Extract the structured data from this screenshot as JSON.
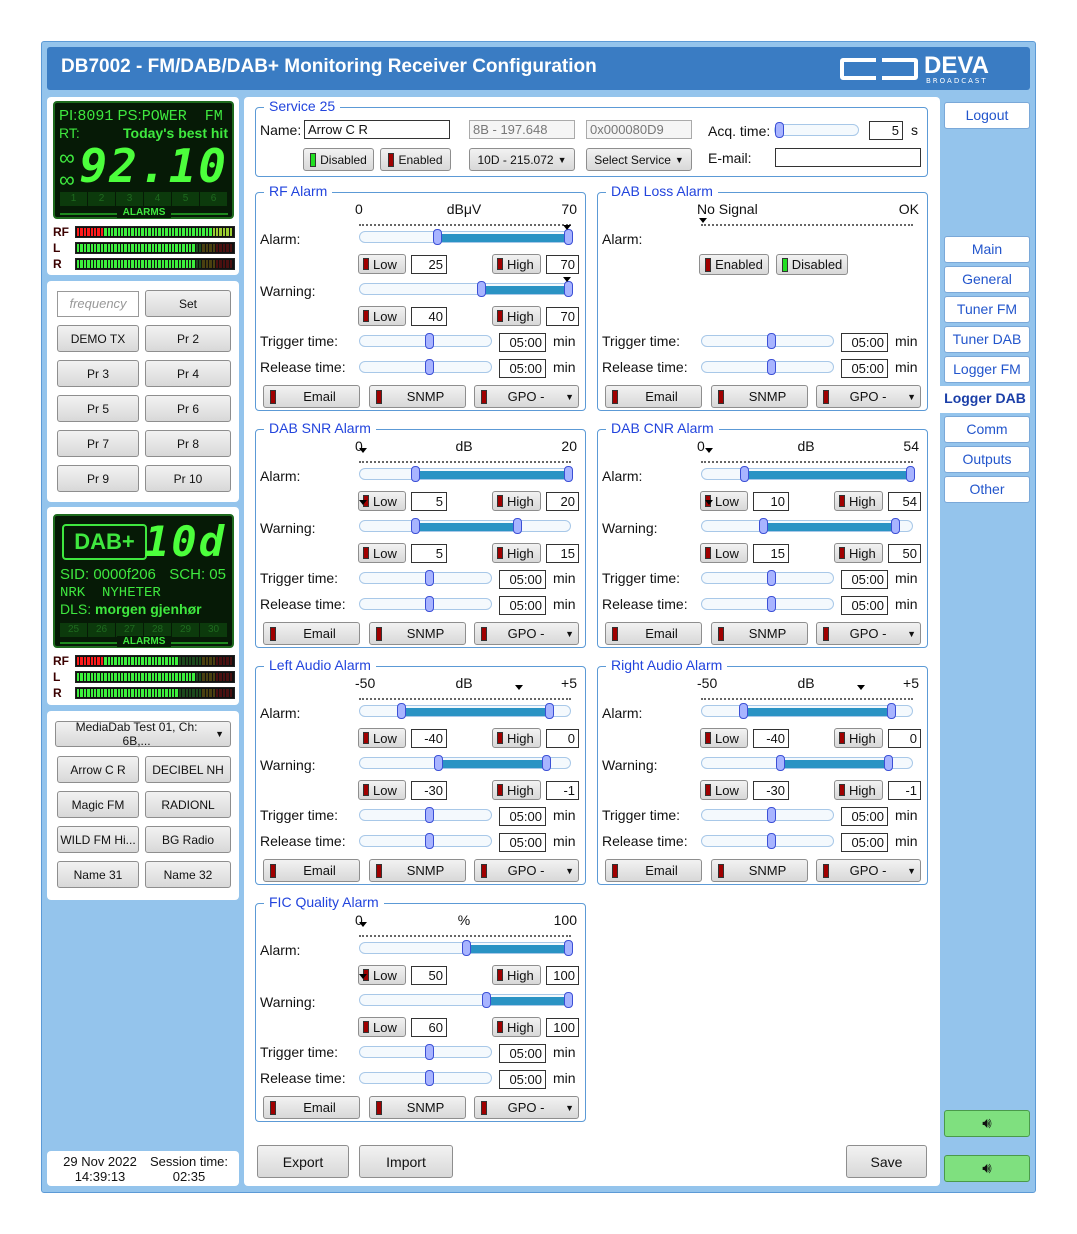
{
  "header": {
    "title": "DB7002 - FM/DAB/DAB+ Monitoring Receiver Configuration",
    "logo_main": "DEVA",
    "logo_sub": "BROADCAST"
  },
  "fm_display": {
    "pi_label": "PI:",
    "pi": "8091",
    "ps_label": "PS:",
    "ps": "POWER  FM",
    "rt_label": "RT:",
    "rt": "Today's best hit",
    "frequency": "92.10",
    "alarms_label": "ALARMS",
    "alarm_cells": [
      "1",
      "2",
      "3",
      "4",
      "5",
      "6"
    ]
  },
  "fm_meters": [
    {
      "label": "RF",
      "level": 1.0,
      "red_until": 0.17
    },
    {
      "label": "L",
      "level": 0.75,
      "red_until": 0
    },
    {
      "label": "R",
      "level": 0.75,
      "red_until": 0
    }
  ],
  "presets": {
    "frequency_placeholder": "frequency",
    "set_label": "Set",
    "items": [
      "DEMO TX",
      "Pr 2",
      "Pr 3",
      "Pr 4",
      "Pr 5",
      "Pr 6",
      "Pr 7",
      "Pr 8",
      "Pr 9",
      "Pr 10"
    ]
  },
  "dab_display": {
    "logo": "DAB+",
    "channel": "10d",
    "sid": "SID: 0000f206",
    "sch": "SCH: 05",
    "label": "NRK  NYHETER",
    "dls_label": "DLS:",
    "dls": "morgen gjenhør",
    "alarms_label": "ALARMS",
    "alarm_cells": [
      "25",
      "26",
      "27",
      "28",
      "29",
      "30"
    ]
  },
  "dab_meters": [
    {
      "label": "RF",
      "level": 0.65,
      "red_until": 0.17
    },
    {
      "label": "L",
      "level": 0.75,
      "red_until": 0
    },
    {
      "label": "R",
      "level": 0.65,
      "red_until": 0
    }
  ],
  "services": {
    "selected": "MediaDab Test 01, Ch: 6B,...",
    "items": [
      "Arrow C R",
      "DECIBEL NH",
      "Magic FM",
      "RADIONL",
      "WILD FM Hi...",
      "BG Radio",
      "Name 31",
      "Name 32"
    ]
  },
  "status": {
    "date": "29 Nov 2022",
    "time": "14:39:13",
    "session_label": "Session time:",
    "session": "02:35"
  },
  "service": {
    "title": "Service 25",
    "name_label": "Name:",
    "name": "Arrow C R",
    "frequency": "8B - 197.648",
    "id": "0x000080D9",
    "disabled_label": "Disabled",
    "enabled_label": "Enabled",
    "channel_select": "10D - 215.072",
    "service_select": "Select Service",
    "acq_label": "Acq. time:",
    "acq_value": "5",
    "acq_unit": "s",
    "acq_fraction": 0.0,
    "email_label": "E-mail:",
    "email": ""
  },
  "labels": {
    "alarm": "Alarm:",
    "warning": "Warning:",
    "trigger": "Trigger time:",
    "release": "Release time:",
    "min": "min",
    "low": "Low",
    "high": "High",
    "email": "Email",
    "snmp": "SNMP",
    "gpo": "GPO -"
  },
  "alarms": [
    {
      "title": "RF Alarm",
      "scale_min": "0",
      "unit": "dBμV",
      "scale_max": "70",
      "range": [
        0,
        70
      ],
      "current": 70,
      "alarm": {
        "low": "25",
        "high": "70"
      },
      "warning": {
        "low": "40",
        "high": "70"
      },
      "trigger": "05:00",
      "release": "05:00"
    },
    {
      "title": "DAB Loss Alarm",
      "type": "loss",
      "scale_min": "No Signal",
      "scale_max": "OK",
      "enabled_label": "Enabled",
      "disabled_label": "Disabled",
      "trigger": "05:00",
      "release": "05:00"
    },
    {
      "title": "DAB SNR Alarm",
      "scale_min": "0",
      "unit": "dB",
      "scale_max": "20",
      "range": [
        0,
        20
      ],
      "current": 0,
      "alarm": {
        "low": "5",
        "high": "20"
      },
      "warning": {
        "low": "5",
        "high": "15"
      },
      "trigger": "05:00",
      "release": "05:00"
    },
    {
      "title": "DAB CNR Alarm",
      "scale_min": "0",
      "unit": "dB",
      "scale_max": "54",
      "range": [
        0,
        54
      ],
      "current": 1,
      "alarm": {
        "low": "10",
        "high": "54"
      },
      "warning": {
        "low": "15",
        "high": "50"
      },
      "trigger": "05:00",
      "release": "05:00"
    },
    {
      "title": "Left Audio Alarm",
      "scale_min": "-50",
      "unit": "dB",
      "scale_max": "+5",
      "range": [
        -50,
        5
      ],
      "current": -8,
      "alarm": {
        "low": "-40",
        "high": "0"
      },
      "warning": {
        "low": "-30",
        "high": "-1"
      },
      "trigger": "05:00",
      "release": "05:00"
    },
    {
      "title": "Right Audio Alarm",
      "scale_min": "-50",
      "unit": "dB",
      "scale_max": "+5",
      "range": [
        -50,
        5
      ],
      "current": -8,
      "alarm": {
        "low": "-40",
        "high": "0"
      },
      "warning": {
        "low": "-30",
        "high": "-1"
      },
      "trigger": "05:00",
      "release": "05:00"
    },
    {
      "title": "FIC Quality Alarm",
      "scale_min": "0",
      "unit": "%",
      "scale_max": "100",
      "range": [
        0,
        100
      ],
      "current": 0,
      "alarm": {
        "low": "50",
        "high": "100"
      },
      "warning": {
        "low": "60",
        "high": "100"
      },
      "trigger": "05:00",
      "release": "05:00"
    }
  ],
  "time_fraction": 0.52,
  "footer": {
    "export": "Export",
    "import": "Import",
    "save": "Save"
  },
  "nav": {
    "logout": "Logout",
    "items": [
      "Main",
      "General",
      "Tuner FM",
      "Tuner DAB",
      "Logger FM",
      "Logger DAB",
      "Comm",
      "Outputs",
      "Other"
    ],
    "active": "Logger DAB"
  },
  "colors": {
    "header": "#3a7cc3",
    "frame": "#94c4ec",
    "lcd_green": "#3fe83f",
    "slider_fill": "#2a93c4",
    "indicator_red": "#a00000",
    "indicator_green": "#22e022"
  }
}
